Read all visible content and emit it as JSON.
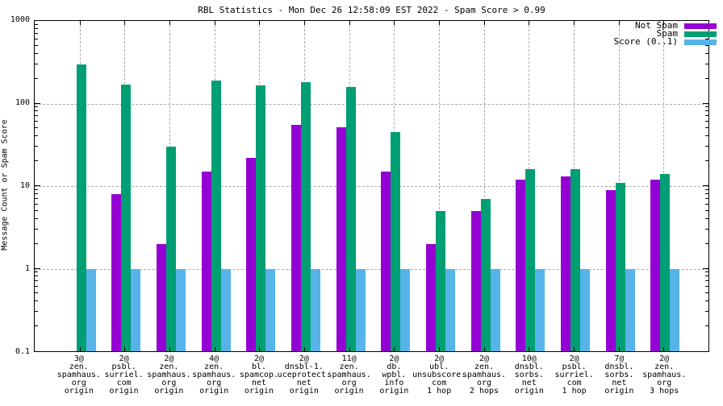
{
  "chart_data": {
    "type": "bar",
    "title": "RBL Statistics - Mon Dec 26 12:58:09 EST 2022 - Spam Score > 0.99",
    "ylabel": "Message Count or Spam Score",
    "yscale": "log",
    "ylim": [
      0.1,
      1000
    ],
    "ytick_labels": [
      "1000",
      "100",
      "10",
      "1",
      "0.1"
    ],
    "ytick_values": [
      1000,
      100,
      10,
      1,
      0.1
    ],
    "grid": true,
    "legend_position": "top-right-inside",
    "grid_color": "#a8a8a8",
    "categories": [
      "3@\nzen.\nspamhaus.\norg\norigin",
      "2@\npsbl.\nsurriel.\ncom\norigin",
      "2@\nzen.\nspamhaus.\norg\norigin",
      "4@\nzen.\nspamhaus.\norg\norigin",
      "2@\nbl.\nspamcop.\nnet\norigin",
      "2@\ndnsbl-1.\nuceprotect.\nnet\norigin",
      "11@\nzen.\nspamhaus.\norg\norigin",
      "2@\ndb.\nwpbl.\ninfo\norigin",
      "2@\nubl.\nunsubscore.\ncom\n1 hop",
      "2@\nzen.\nspamhaus.\norg\n2 hops",
      "10@\ndnsbl.\nsorbs.\nnet\norigin",
      "2@\npsbl.\nsurriel.\ncom\n1 hop",
      "7@\ndnsbl.\nsorbs.\nnet\norigin",
      "2@\nzen.\nspamhaus.\norg\n3 hops"
    ],
    "series": [
      {
        "name": "Not Spam",
        "color": "#9400d3",
        "values": [
          null,
          8,
          2,
          15,
          22,
          55,
          52,
          15,
          2,
          5,
          12,
          13,
          9,
          12
        ]
      },
      {
        "name": "Spam",
        "color": "#009e73",
        "values": [
          300,
          170,
          30,
          190,
          165,
          180,
          160,
          45,
          5,
          7,
          16,
          16,
          11,
          14
        ]
      },
      {
        "name": "Score (0..1)",
        "color": "#56b4e9",
        "values": [
          1,
          1,
          1,
          1,
          1,
          1,
          1,
          1,
          1,
          1,
          1,
          1,
          1,
          1
        ]
      }
    ]
  }
}
